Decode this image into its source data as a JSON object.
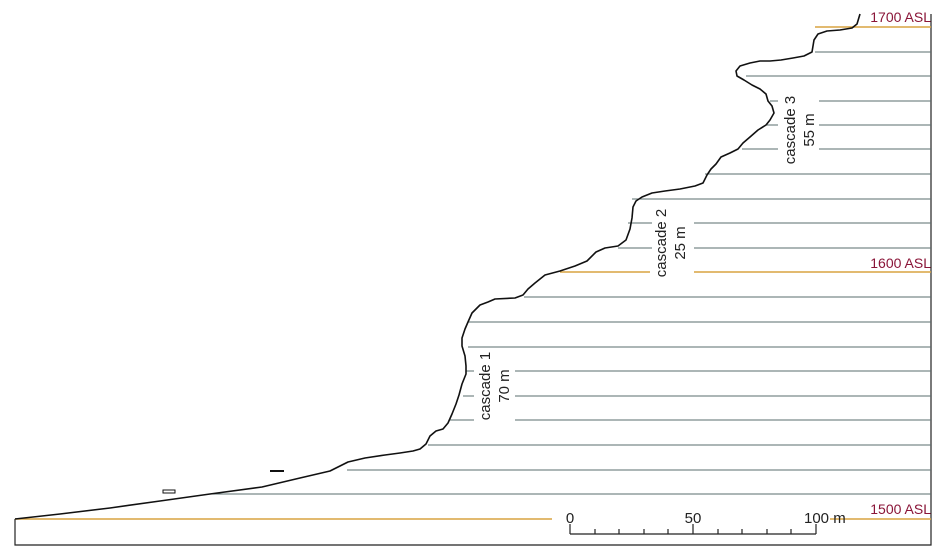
{
  "elevation_labels": {
    "top": "1700 ASL",
    "middle": "1600 ASL",
    "bottom": "1500 ASL"
  },
  "cascades": [
    {
      "name": "cascade 1",
      "height": "70 m"
    },
    {
      "name": "cascade 2",
      "height": "25 m"
    },
    {
      "name": "cascade 3",
      "height": "55 m"
    }
  ],
  "scale_bar": {
    "tick_0": "0",
    "tick_50": "50",
    "tick_100": "100 m"
  },
  "colors": {
    "terrain_line": "#111111",
    "contour_line": "#5a6e6e",
    "index_contour": "#d9a441",
    "asl_label": "#8a1538",
    "frame": "#222222"
  }
}
